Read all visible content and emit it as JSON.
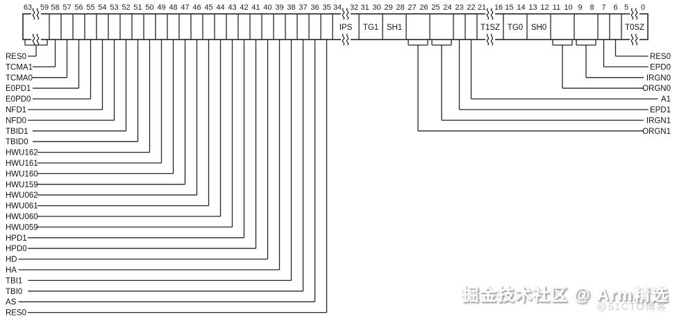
{
  "register": {
    "description": "register-bit-field-diagram",
    "fields": [
      {
        "bits": "63:59",
        "numbers": [
          "63",
          "59"
        ],
        "name": "",
        "compressed": true
      },
      {
        "bits": "58",
        "numbers": [
          "58"
        ]
      },
      {
        "bits": "57",
        "numbers": [
          "57"
        ]
      },
      {
        "bits": "56",
        "numbers": [
          "56"
        ]
      },
      {
        "bits": "55",
        "numbers": [
          "55"
        ]
      },
      {
        "bits": "54",
        "numbers": [
          "54"
        ]
      },
      {
        "bits": "53",
        "numbers": [
          "53"
        ]
      },
      {
        "bits": "52",
        "numbers": [
          "52"
        ]
      },
      {
        "bits": "51",
        "numbers": [
          "51"
        ]
      },
      {
        "bits": "50",
        "numbers": [
          "50"
        ]
      },
      {
        "bits": "49",
        "numbers": [
          "49"
        ]
      },
      {
        "bits": "48",
        "numbers": [
          "48"
        ]
      },
      {
        "bits": "47",
        "numbers": [
          "47"
        ]
      },
      {
        "bits": "46",
        "numbers": [
          "46"
        ]
      },
      {
        "bits": "45",
        "numbers": [
          "45"
        ]
      },
      {
        "bits": "44",
        "numbers": [
          "44"
        ]
      },
      {
        "bits": "43",
        "numbers": [
          "43"
        ]
      },
      {
        "bits": "42",
        "numbers": [
          "42"
        ]
      },
      {
        "bits": "41",
        "numbers": [
          "41"
        ]
      },
      {
        "bits": "40",
        "numbers": [
          "40"
        ]
      },
      {
        "bits": "39",
        "numbers": [
          "39"
        ]
      },
      {
        "bits": "38",
        "numbers": [
          "38"
        ]
      },
      {
        "bits": "37",
        "numbers": [
          "37"
        ]
      },
      {
        "bits": "36",
        "numbers": [
          "36"
        ]
      },
      {
        "bits": "35",
        "numbers": [
          "35"
        ]
      },
      {
        "bits": "34:32",
        "numbers": [
          "34",
          "32"
        ],
        "name": "IPS",
        "compressed": true
      },
      {
        "bits": "31:30",
        "numbers": [
          "31",
          "30"
        ],
        "name": "TG1"
      },
      {
        "bits": "29:28",
        "numbers": [
          "29",
          "28"
        ],
        "name": "SH1"
      },
      {
        "bits": "27:26",
        "numbers": [
          "27",
          "26"
        ]
      },
      {
        "bits": "25:24",
        "numbers": [
          "25",
          "24"
        ]
      },
      {
        "bits": "23",
        "numbers": [
          "23"
        ]
      },
      {
        "bits": "22",
        "numbers": [
          "22"
        ]
      },
      {
        "bits": "21:16",
        "numbers": [
          "21",
          "16"
        ],
        "name": "T1SZ",
        "compressed": true
      },
      {
        "bits": "15:14",
        "numbers": [
          "15",
          "14"
        ],
        "name": "TG0"
      },
      {
        "bits": "13:12",
        "numbers": [
          "13",
          "12"
        ],
        "name": "SH0"
      },
      {
        "bits": "11:10",
        "numbers": [
          "11",
          "10"
        ]
      },
      {
        "bits": "9:8",
        "numbers": [
          "9",
          "8"
        ]
      },
      {
        "bits": "7",
        "numbers": [
          "7"
        ]
      },
      {
        "bits": "6",
        "numbers": [
          "6"
        ]
      },
      {
        "bits": "5:0",
        "numbers": [
          "5",
          "0"
        ],
        "name": "T0SZ",
        "compressed": true
      }
    ],
    "left_labels": [
      {
        "text": "RES0",
        "bits": "63:59"
      },
      {
        "text": "TCMA1",
        "bits": "58"
      },
      {
        "text": "TCMA0",
        "bits": "57"
      },
      {
        "text": "E0PD1",
        "bits": "56"
      },
      {
        "text": "E0PD0",
        "bits": "55"
      },
      {
        "text": "NFD1",
        "bits": "54"
      },
      {
        "text": "NFD0",
        "bits": "53"
      },
      {
        "text": "TBID1",
        "bits": "52"
      },
      {
        "text": "TBID0",
        "bits": "51"
      },
      {
        "text": "HWU162",
        "bits": "50"
      },
      {
        "text": "HWU161",
        "bits": "49"
      },
      {
        "text": "HWU160",
        "bits": "48"
      },
      {
        "text": "HWU159",
        "bits": "47"
      },
      {
        "text": "HWU062",
        "bits": "46"
      },
      {
        "text": "HWU061",
        "bits": "45"
      },
      {
        "text": "HWU060",
        "bits": "44"
      },
      {
        "text": "HWU059",
        "bits": "43"
      },
      {
        "text": "HPD1",
        "bits": "42"
      },
      {
        "text": "HPD0",
        "bits": "41"
      },
      {
        "text": "HD",
        "bits": "40"
      },
      {
        "text": "HA",
        "bits": "39"
      },
      {
        "text": "TBI1",
        "bits": "38"
      },
      {
        "text": "TBI0",
        "bits": "37"
      },
      {
        "text": "AS",
        "bits": "36"
      },
      {
        "text": "RES0",
        "bits": "35"
      }
    ],
    "right_labels": [
      {
        "text": "RES0",
        "bits": "6"
      },
      {
        "text": "EPD0",
        "bits": "7"
      },
      {
        "text": "IRGN0",
        "bits": "9:8"
      },
      {
        "text": "ORGN0",
        "bits": "11:10"
      },
      {
        "text": "A1",
        "bits": "22"
      },
      {
        "text": "EPD1",
        "bits": "23"
      },
      {
        "text": "IRGN1",
        "bits": "25:24"
      },
      {
        "text": "ORGN1",
        "bits": "27:26"
      }
    ]
  },
  "watermark": {
    "text": "掘金技术社区 @ Arm精选",
    "sub_text": "@51CTO博客"
  }
}
